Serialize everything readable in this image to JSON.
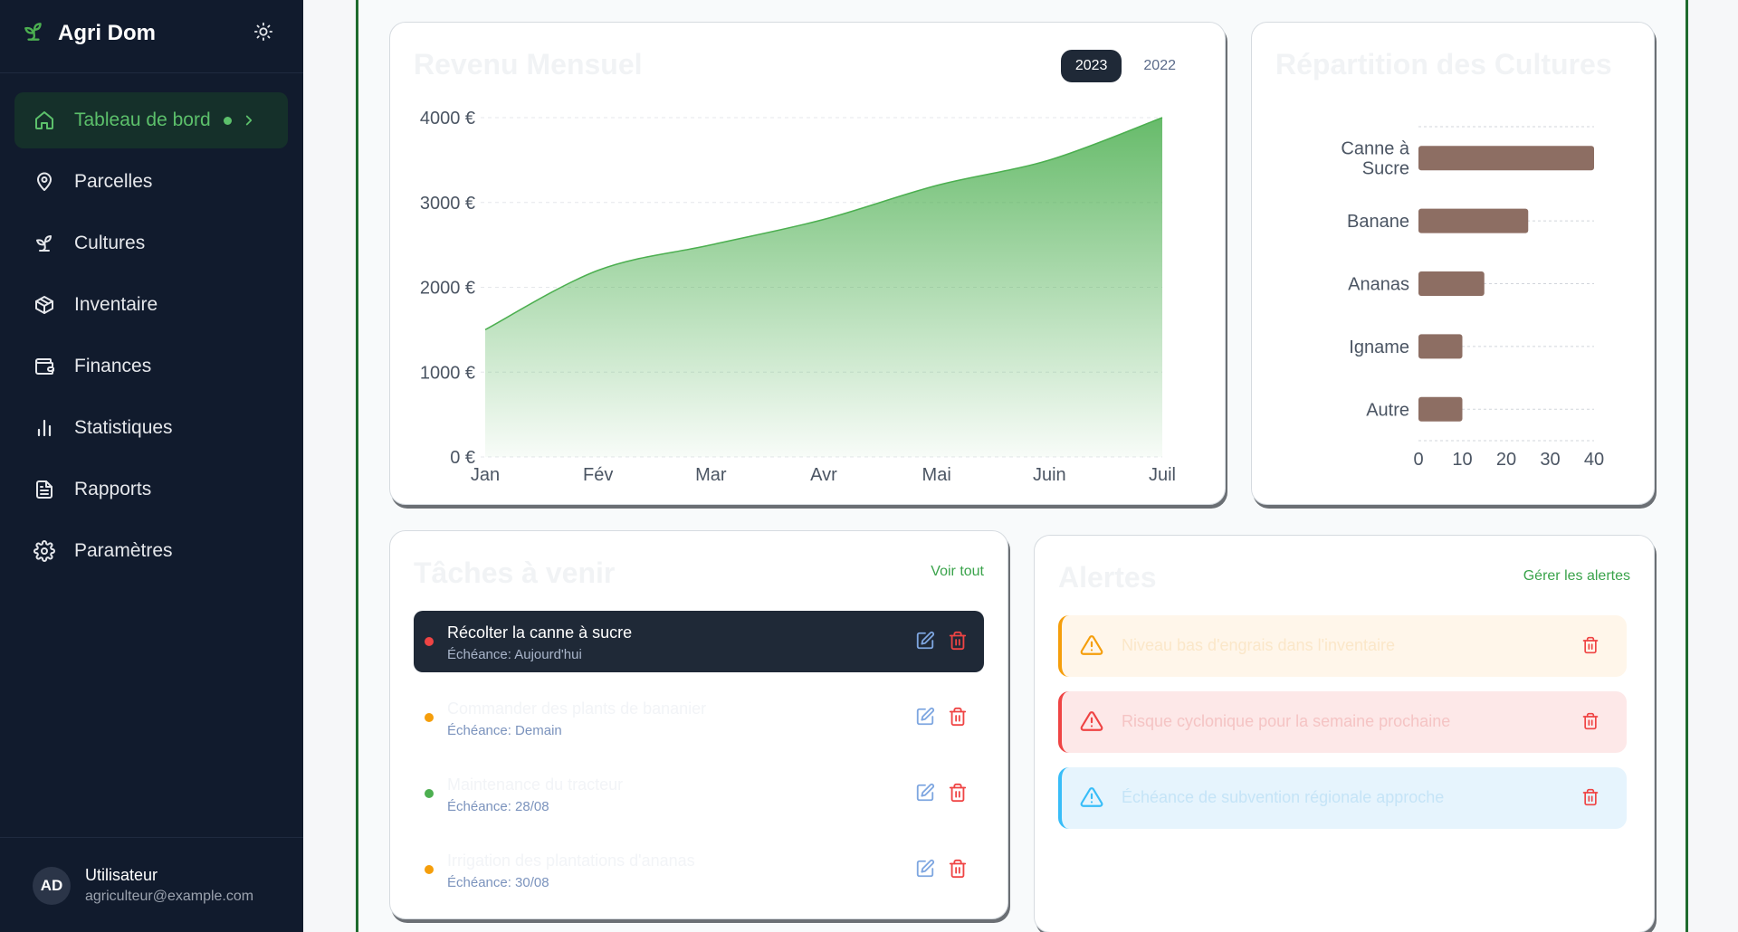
{
  "app": {
    "title": "Agri Dom",
    "brand_color": "#3aa34b"
  },
  "sidebar": {
    "items": [
      {
        "label": "Tableau de bord",
        "icon": "home-icon",
        "active": true
      },
      {
        "label": "Parcelles",
        "icon": "map-pin-icon"
      },
      {
        "label": "Cultures",
        "icon": "sprout-icon"
      },
      {
        "label": "Inventaire",
        "icon": "package-icon"
      },
      {
        "label": "Finances",
        "icon": "wallet-icon"
      },
      {
        "label": "Statistiques",
        "icon": "bar-chart-icon"
      },
      {
        "label": "Rapports",
        "icon": "file-text-icon"
      },
      {
        "label": "Paramètres",
        "icon": "settings-icon"
      }
    ],
    "user": {
      "initials": "AD",
      "name": "Utilisateur",
      "email": "agriculteur@example.com"
    }
  },
  "revenue_card": {
    "title": "Revenu Mensuel",
    "years": [
      "2023",
      "2022"
    ],
    "selected_year": "2023"
  },
  "crops_card": {
    "title": "Répartition des Cultures"
  },
  "tasks_card": {
    "title": "Tâches à venir",
    "link": "Voir tout",
    "tasks": [
      {
        "title": "Récolter la canne à sucre",
        "due": "Échéance: Aujourd'hui",
        "priority_color": "#ef4444",
        "active": true
      },
      {
        "title": "Commander des plants de bananier",
        "due": "Échéance: Demain",
        "priority_color": "#f59e0b"
      },
      {
        "title": "Maintenance du tracteur",
        "due": "Échéance: 28/08",
        "priority_color": "#4caf50"
      },
      {
        "title": "Irrigation des plantations d'ananas",
        "due": "Échéance: 30/08",
        "priority_color": "#f59e0b"
      }
    ]
  },
  "alerts_card": {
    "title": "Alertes",
    "link": "Gérer les alertes",
    "alerts": [
      {
        "text": "Niveau bas d'engrais dans l'inventaire",
        "level": "warning",
        "bg": "#fff6ea",
        "bar": "#f59e0b",
        "text_color": "#fbe7c9"
      },
      {
        "text": "Risque cyclonique pour la semaine prochaine",
        "level": "danger",
        "bg": "#fde8e8",
        "bar": "#ef4444",
        "text_color": "#f5c4c4"
      },
      {
        "text": "Échéance de subvention régionale approche",
        "level": "info",
        "bg": "#e6f4fd",
        "bar": "#38bdf8",
        "text_color": "#c5e4f7"
      }
    ]
  },
  "chart_data": [
    {
      "type": "area",
      "categories": [
        "Jan",
        "Fév",
        "Mar",
        "Avr",
        "Mai",
        "Juin",
        "Juil"
      ],
      "values": [
        1500,
        2200,
        2500,
        2800,
        3200,
        3500,
        4000
      ],
      "y_ticks": [
        "0 €",
        "1000 €",
        "2000 €",
        "3000 €",
        "4000 €"
      ],
      "ylim": [
        0,
        4000
      ],
      "grid": true,
      "color": "#4caf50"
    },
    {
      "type": "bar",
      "orientation": "horizontal",
      "categories": [
        "Canne à Sucre",
        "Banane",
        "Ananas",
        "Igname",
        "Autre"
      ],
      "values": [
        40,
        25,
        15,
        10,
        10
      ],
      "x_ticks": [
        "0",
        "10",
        "20",
        "30",
        "40"
      ],
      "xlim": [
        0,
        40
      ],
      "grid": true,
      "color": "#8d6e63"
    }
  ]
}
